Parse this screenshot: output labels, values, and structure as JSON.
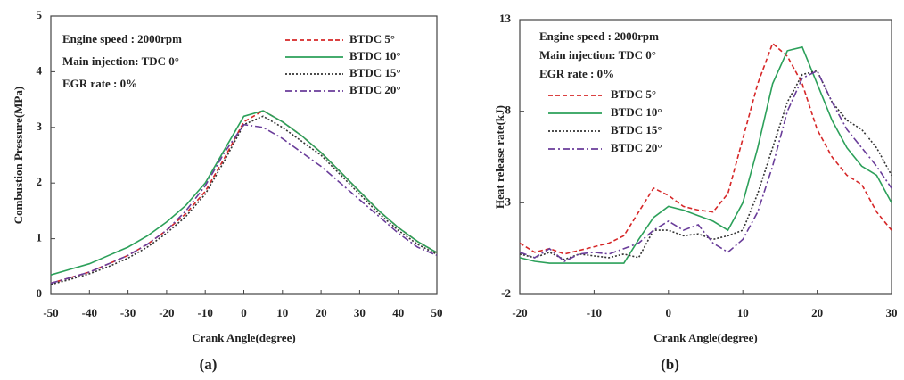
{
  "chart_data": [
    {
      "type": "line",
      "caption": "(a)",
      "xlabel": "Crank Angle(degree)",
      "ylabel": "Combustion Pressure(MPa)",
      "annotations": [
        "Engine speed : 2000rpm",
        "Main injection: TDC 0°",
        "EGR rate : 0%"
      ],
      "xlim": [
        -50,
        50
      ],
      "xticks": [
        -50,
        -40,
        -30,
        -20,
        -10,
        0,
        10,
        20,
        30,
        40,
        50
      ],
      "ylim": [
        0,
        5
      ],
      "yticks": [
        0,
        1,
        2,
        3,
        4,
        5
      ],
      "x": [
        -50,
        -45,
        -40,
        -35,
        -30,
        -25,
        -20,
        -15,
        -10,
        -5,
        0,
        5,
        10,
        15,
        20,
        25,
        30,
        35,
        40,
        45,
        50
      ],
      "series": [
        {
          "name": "BTDC 5°",
          "color": "#d62728",
          "style": "dashed",
          "values": [
            0.2,
            0.3,
            0.4,
            0.55,
            0.7,
            0.9,
            1.15,
            1.45,
            1.85,
            2.45,
            3.1,
            3.3,
            3.1,
            2.85,
            2.55,
            2.2,
            1.85,
            1.5,
            1.2,
            0.95,
            0.75
          ]
        },
        {
          "name": "BTDC 10°",
          "color": "#2ca05a",
          "style": "solid",
          "values": [
            0.35,
            0.45,
            0.55,
            0.7,
            0.85,
            1.05,
            1.3,
            1.6,
            2.0,
            2.6,
            3.2,
            3.3,
            3.1,
            2.85,
            2.55,
            2.2,
            1.85,
            1.5,
            1.2,
            0.95,
            0.75
          ]
        },
        {
          "name": "BTDC 15°",
          "color": "#333333",
          "style": "dotted",
          "values": [
            0.18,
            0.27,
            0.37,
            0.5,
            0.65,
            0.85,
            1.1,
            1.4,
            1.8,
            2.4,
            3.05,
            3.2,
            3.0,
            2.75,
            2.5,
            2.15,
            1.8,
            1.45,
            1.15,
            0.9,
            0.72
          ]
        },
        {
          "name": "BTDC 20°",
          "color": "#6a3d9a",
          "style": "dashdot",
          "values": [
            0.2,
            0.3,
            0.4,
            0.55,
            0.7,
            0.9,
            1.15,
            1.5,
            1.95,
            2.55,
            3.05,
            3.0,
            2.8,
            2.55,
            2.3,
            2.0,
            1.7,
            1.4,
            1.1,
            0.85,
            0.7
          ]
        }
      ]
    },
    {
      "type": "line",
      "caption": "(b)",
      "xlabel": "Crank Angle(degree)",
      "ylabel": "Heat release rate(kJ)",
      "annotations": [
        "Engine speed : 2000rpm",
        "Main injection: TDC 0°",
        "EGR rate : 0%"
      ],
      "xlim": [
        -20,
        30
      ],
      "xticks": [
        -20,
        -10,
        0,
        10,
        20,
        30
      ],
      "ylim": [
        -2,
        13
      ],
      "yticks": [
        -2,
        3,
        8,
        13
      ],
      "x": [
        -20,
        -18,
        -16,
        -14,
        -12,
        -10,
        -8,
        -6,
        -4,
        -2,
        0,
        2,
        4,
        6,
        8,
        10,
        12,
        14,
        16,
        18,
        20,
        22,
        24,
        26,
        28,
        30
      ],
      "series": [
        {
          "name": "BTDC 5°",
          "color": "#d62728",
          "style": "dashed",
          "values": [
            0.8,
            0.3,
            0.5,
            0.2,
            0.4,
            0.6,
            0.8,
            1.2,
            2.5,
            3.8,
            3.4,
            2.8,
            2.6,
            2.5,
            3.5,
            6.5,
            9.5,
            11.7,
            11.0,
            9.5,
            7.0,
            5.5,
            4.5,
            4.0,
            2.5,
            1.5
          ]
        },
        {
          "name": "BTDC 10°",
          "color": "#2ca05a",
          "style": "solid",
          "values": [
            0,
            -0.2,
            -0.3,
            -0.3,
            -0.3,
            -0.3,
            -0.3,
            -0.3,
            1.0,
            2.2,
            2.8,
            2.6,
            2.3,
            2.0,
            1.5,
            3.0,
            6.0,
            9.5,
            11.3,
            11.5,
            9.5,
            7.5,
            6.0,
            5.0,
            4.5,
            3.0
          ]
        },
        {
          "name": "BTDC 15°",
          "color": "#333333",
          "style": "dotted",
          "values": [
            0.2,
            0.0,
            0.3,
            -0.1,
            0.2,
            0.1,
            0.0,
            0.2,
            0.0,
            1.5,
            1.5,
            1.2,
            1.3,
            1.0,
            1.2,
            1.5,
            3.5,
            6.0,
            8.5,
            10.0,
            10.2,
            8.5,
            7.5,
            7.0,
            6.0,
            4.5
          ]
        },
        {
          "name": "BTDC 20°",
          "color": "#6a3d9a",
          "style": "dashdot",
          "values": [
            0.3,
            0.0,
            0.5,
            -0.2,
            0.2,
            0.3,
            0.2,
            0.5,
            0.8,
            1.5,
            2.0,
            1.5,
            1.8,
            0.8,
            0.3,
            1.0,
            2.5,
            5.0,
            8.0,
            9.8,
            10.2,
            8.5,
            7.0,
            6.0,
            5.0,
            3.8
          ]
        }
      ]
    }
  ]
}
